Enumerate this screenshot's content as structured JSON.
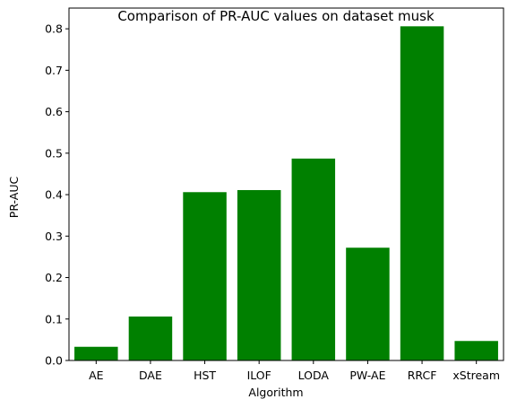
{
  "chart_data": {
    "type": "bar",
    "title": "Comparison of PR-AUC values on dataset musk",
    "xlabel": "Algorithm",
    "ylabel": "PR-AUC",
    "categories": [
      "AE",
      "DAE",
      "HST",
      "ILOF",
      "LODA",
      "PW-AE",
      "RRCF",
      "xStream"
    ],
    "values": [
      0.033,
      0.106,
      0.406,
      0.411,
      0.487,
      0.272,
      0.806,
      0.047
    ],
    "ylim": [
      0,
      0.85
    ],
    "yticks": [
      "0.0",
      "0.1",
      "0.2",
      "0.3",
      "0.4",
      "0.5",
      "0.6",
      "0.7",
      "0.8"
    ],
    "grid": false,
    "bar_color": "#008000"
  }
}
